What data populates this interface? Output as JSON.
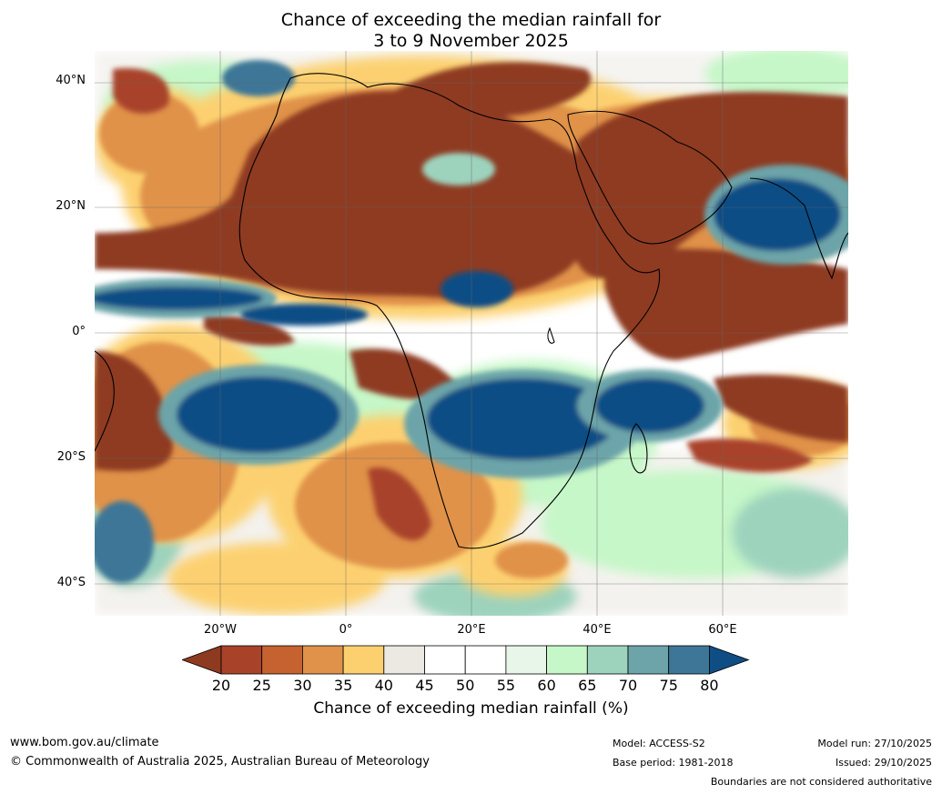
{
  "title": {
    "line1": "Chance of exceeding the median rainfall for",
    "line2": "3 to 9 November 2025"
  },
  "axes": {
    "lat_labels": [
      "40°N",
      "20°N",
      "0°",
      "20°S",
      "40°S"
    ],
    "lon_labels": [
      "20°W",
      "0°",
      "20°E",
      "40°E",
      "60°E"
    ]
  },
  "colorbar": {
    "ticks": [
      "20",
      "25",
      "30",
      "35",
      "40",
      "45",
      "50",
      "55",
      "60",
      "65",
      "70",
      "75",
      "80"
    ],
    "label": "Chance of exceeding median rainfall (%)",
    "colors": [
      "#8e3a20",
      "#a8432a",
      "#c5622f",
      "#e0924a",
      "#fcd06f",
      "#ece9e3",
      "#ffffff",
      "#ffffff",
      "#e8f6e9",
      "#c6f7c8",
      "#9dd3bd",
      "#6ca4a9",
      "#3e7697",
      "#0f4d85"
    ]
  },
  "footer": {
    "url": "www.bom.gov.au/climate",
    "copyright": "© Commonwealth of Australia 2025, Australian Bureau of Meteorology",
    "model": "Model: ACCESS-S2",
    "base_period": "Base period: 1981-2018",
    "model_run": "Model run: 27/10/2025",
    "issued": "Issued: 29/10/2025",
    "disclaimer": "Boundaries are not considered authoritative"
  }
}
